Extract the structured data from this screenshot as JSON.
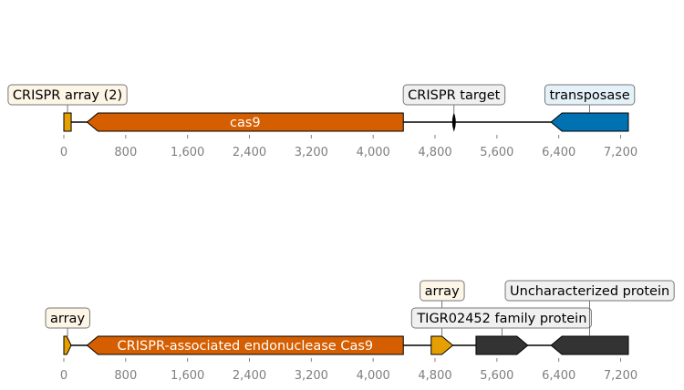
{
  "tracks": [
    {
      "axis": {
        "min": 0,
        "max": 7300,
        "ticks": [
          0,
          800,
          1600,
          2400,
          3200,
          4000,
          4800,
          5600,
          6400,
          7200
        ],
        "tick_labels": [
          "0",
          "800",
          "1,600",
          "2,400",
          "3,200",
          "4,000",
          "4,800",
          "5,600",
          "6,400",
          "7,200"
        ]
      },
      "features": [
        {
          "id": "crispr-array",
          "start": 0,
          "end": 95,
          "strand": 0,
          "color": "#e69f00",
          "label": "CRISPR array (2)",
          "label_pos": "outside",
          "label_bg": "#fdf5e6"
        },
        {
          "id": "cas9",
          "start": 300,
          "end": 4390,
          "strand": -1,
          "color": "#d55e00",
          "label": "cas9",
          "label_pos": "inside"
        },
        {
          "id": "crispr-target",
          "start": 5030,
          "end": 5060,
          "strand": 0,
          "color": "#000000",
          "label": "CRISPR target",
          "label_pos": "outside",
          "label_bg": "#f0f0f0"
        },
        {
          "id": "transposase",
          "start": 6300,
          "end": 7300,
          "strand": -1,
          "color": "#0072b2",
          "label": "transposase",
          "label_pos": "outside",
          "label_bg": "#e5f1f8"
        }
      ]
    },
    {
      "axis": {
        "min": 0,
        "max": 7300,
        "ticks": [
          0,
          800,
          1600,
          2400,
          3200,
          4000,
          4800,
          5600,
          6400,
          7200
        ],
        "tick_labels": [
          "0",
          "800",
          "1,600",
          "2,400",
          "3,200",
          "4,000",
          "4,800",
          "5,600",
          "6,400",
          "7,200"
        ]
      },
      "features": [
        {
          "id": "array",
          "start": 0,
          "end": 95,
          "strand": 1,
          "color": "#e69f00",
          "label": "array",
          "label_pos": "outside",
          "label_bg": "#fdf5e6"
        },
        {
          "id": "cas9-endonuclease",
          "start": 300,
          "end": 4390,
          "strand": -1,
          "color": "#d55e00",
          "label": "CRISPR-associated endonuclease Cas9",
          "label_pos": "inside"
        },
        {
          "id": "array-2",
          "start": 4750,
          "end": 5030,
          "strand": 1,
          "color": "#e69f00",
          "label": "array",
          "label_pos": "outside",
          "label_bg": "#fdf5e6"
        },
        {
          "id": "tigr02452",
          "start": 5330,
          "end": 6000,
          "strand": 1,
          "color": "#333333",
          "label": "TIGR02452 family protein",
          "label_pos": "outside",
          "label_bg": "#f0f0f0"
        },
        {
          "id": "uncharacterized",
          "start": 6300,
          "end": 7300,
          "strand": -1,
          "color": "#333333",
          "label": "Uncharacterized protein",
          "label_pos": "outside",
          "label_bg": "#f0f0f0"
        }
      ]
    }
  ]
}
